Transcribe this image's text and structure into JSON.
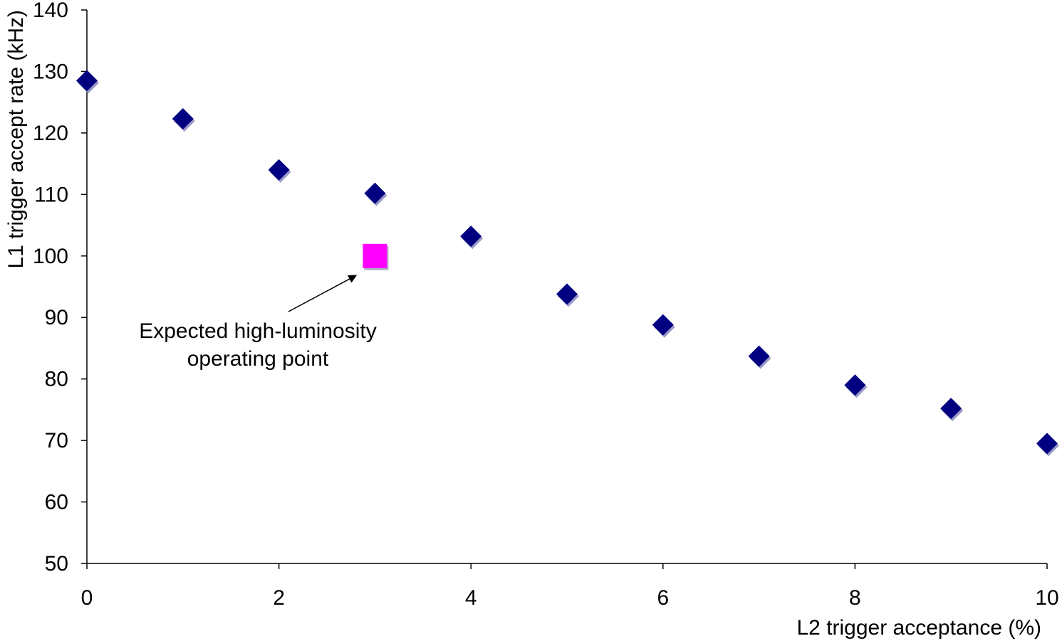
{
  "chart_data": {
    "type": "scatter",
    "title": "",
    "xlabel": "L2 trigger acceptance (%)",
    "ylabel": "L1 trigger accept rate (kHz)",
    "xlim": [
      0,
      10
    ],
    "ylim": [
      50,
      140
    ],
    "xticks": [
      0,
      2,
      4,
      6,
      8,
      10
    ],
    "yticks": [
      50,
      60,
      70,
      80,
      90,
      100,
      110,
      120,
      130,
      140
    ],
    "grid": false,
    "legend": "none",
    "series": [
      {
        "marker": "diamond",
        "color": "#000080",
        "x": [
          0,
          1,
          2,
          3,
          4,
          5,
          6,
          7,
          8,
          9,
          10
        ],
        "y": [
          128.5,
          122.3,
          114.0,
          110.2,
          103.2,
          93.8,
          88.8,
          83.7,
          79.0,
          75.2,
          69.5
        ]
      },
      {
        "marker": "square",
        "color": "#ff00ff",
        "x": [
          3
        ],
        "y": [
          100
        ]
      }
    ],
    "annotations": [
      {
        "lines": [
          "Expected high-luminosity",
          "operating point"
        ],
        "points_to": {
          "x": 2.8,
          "y": 96.8
        }
      }
    ]
  }
}
